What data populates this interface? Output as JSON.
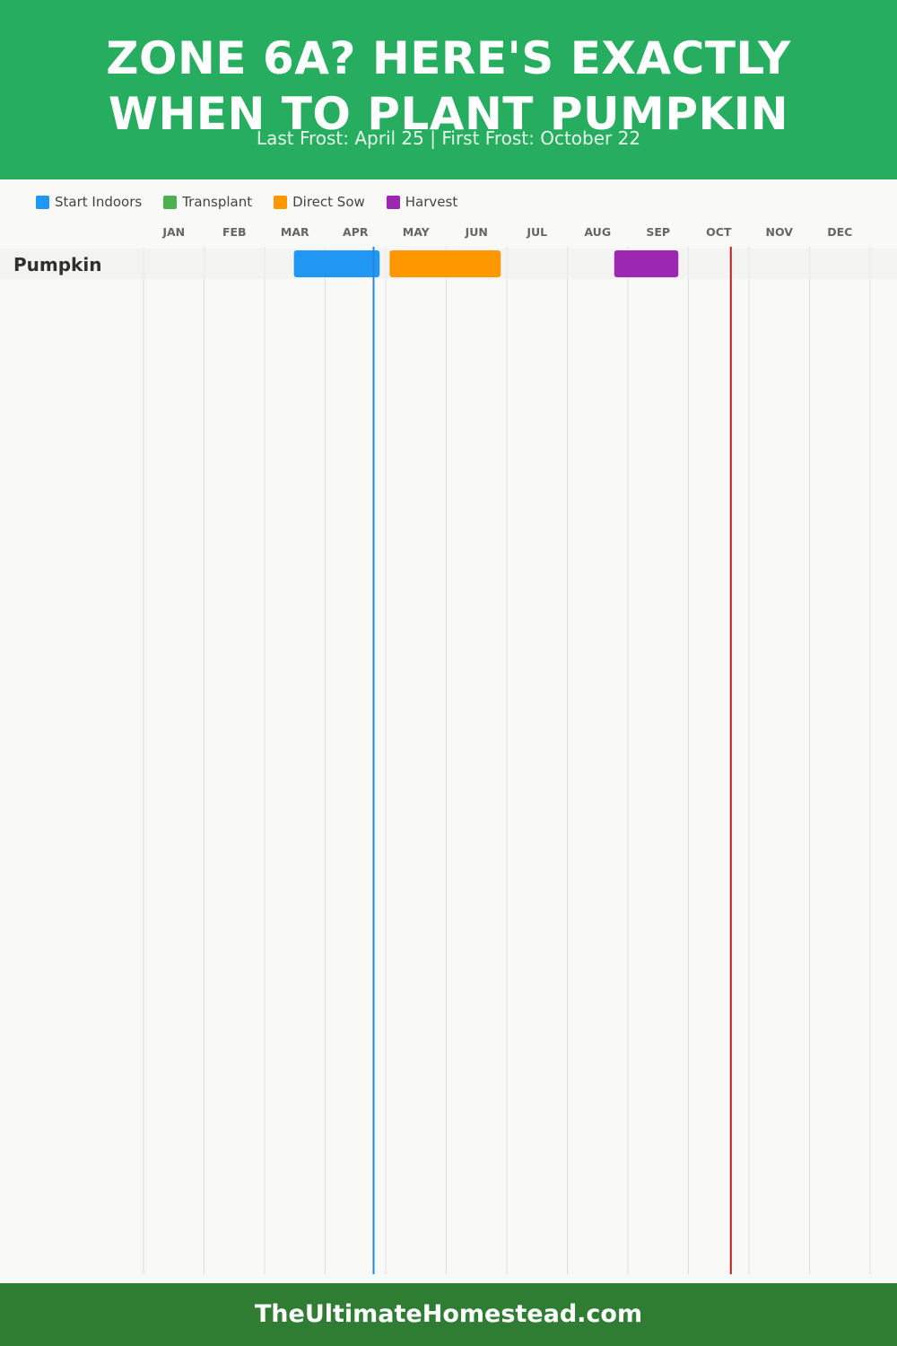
{
  "header": {
    "title_line1": "ZONE 6A? HERE'S EXACTLY",
    "title_line2": "WHEN TO PLANT PUMPKIN",
    "subtitle": "Last Frost: April 25 | First Frost: October 22",
    "background": "#27ad60"
  },
  "legend": [
    {
      "label": "Start Indoors",
      "color": "#2196f3"
    },
    {
      "label": "Transplant",
      "color": "#4caf50"
    },
    {
      "label": "Direct Sow",
      "color": "#ff9800"
    },
    {
      "label": "Harvest",
      "color": "#9c27b0"
    }
  ],
  "chart_data": {
    "type": "gantt",
    "months": [
      "JAN",
      "FEB",
      "MAR",
      "APR",
      "MAY",
      "JUN",
      "JUL",
      "AUG",
      "SEP",
      "OCT",
      "NOV",
      "DEC"
    ],
    "rows": [
      {
        "crop": "Pumpkin",
        "periods": [
          {
            "phase": "Start Indoors",
            "start": "Mar 16",
            "end": "Apr 28",
            "color": "#2196f3"
          },
          {
            "phase": "Direct Sow",
            "start": "May 3",
            "end": "Jun 28",
            "color": "#ff9800"
          },
          {
            "phase": "Harvest",
            "start": "Aug 25",
            "end": "Sep 26",
            "color": "#9c27b0"
          }
        ]
      }
    ],
    "markers": [
      {
        "name": "Last Frost",
        "date": "April 25",
        "month_position": 3.8,
        "color": "#1e88e5"
      },
      {
        "name": "First Frost",
        "date": "October 22",
        "month_position": 9.7,
        "color": "#b71c1c"
      }
    ],
    "grid": true,
    "legend_position": "top-left"
  },
  "footer": {
    "text": "TheUltimateHomestead.com",
    "background": "#2e7d32"
  }
}
